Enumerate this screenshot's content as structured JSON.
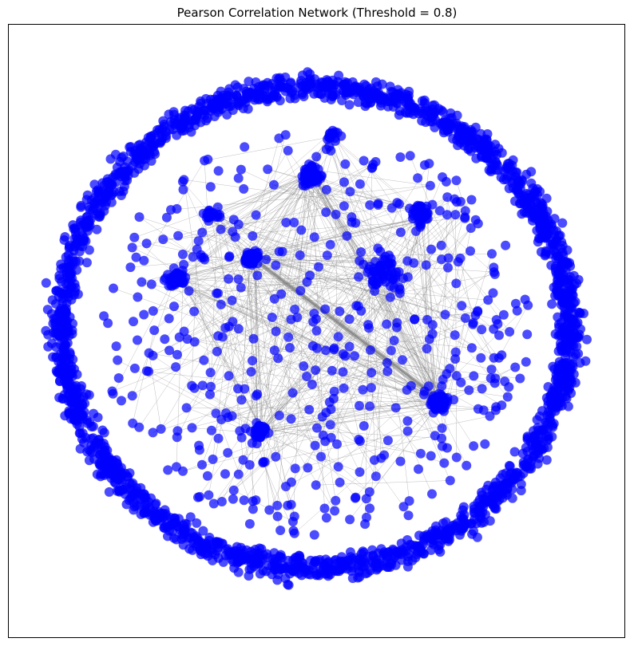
{
  "figure": {
    "title": "Pearson Correlation Network (Threshold = 0.8)"
  },
  "graph": {
    "node_color": "#0000ff",
    "node_opacity": 0.7,
    "edge_color": "#808080",
    "edge_opacity": 0.5,
    "layout": "spring",
    "axes_visible": false
  }
}
